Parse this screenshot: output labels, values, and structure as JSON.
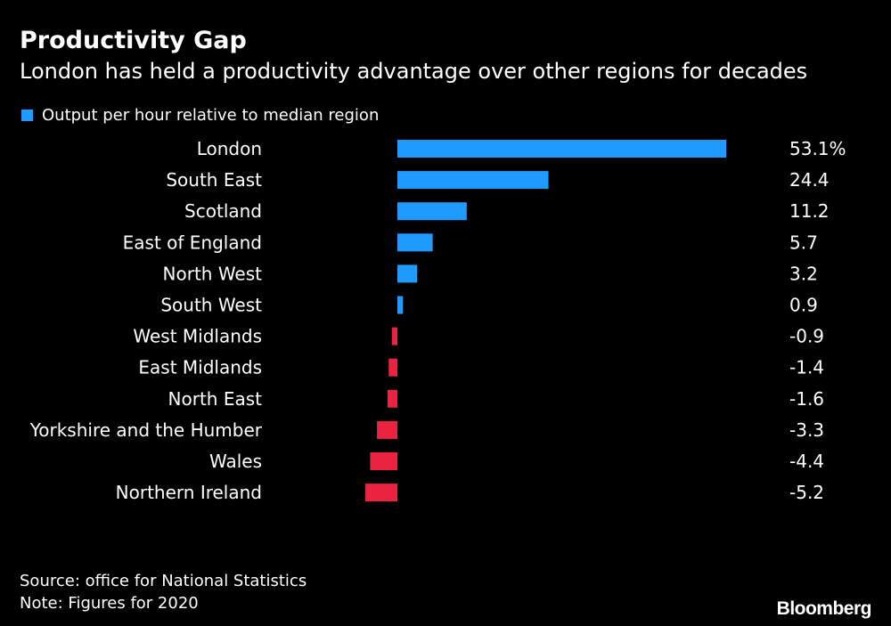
{
  "header": {
    "title": "Productivity Gap",
    "subtitle": "London has held a productivity advantage over other regions for decades"
  },
  "chart_data": {
    "type": "bar",
    "orientation": "horizontal",
    "legend": [
      {
        "name": "Output per hour relative to median region",
        "color": "#1f9bff"
      }
    ],
    "categories": [
      "London",
      "South East",
      "Scotland",
      "East of England",
      "North West",
      "South West",
      "West Midlands",
      "East Midlands",
      "North East",
      "Yorkshire and the Humber",
      "Wales",
      "Northern Ireland"
    ],
    "values": [
      53.1,
      24.4,
      11.2,
      5.7,
      3.2,
      0.9,
      -0.9,
      -1.4,
      -1.6,
      -3.3,
      -4.4,
      -5.2
    ],
    "value_labels": [
      "53.1%",
      "24.4",
      "11.2",
      "5.7",
      "3.2",
      "0.9",
      "-0.9",
      "-1.4",
      "-1.6",
      "-3.3",
      "-4.4",
      "-5.2"
    ],
    "colors": {
      "positive": "#1f9bff",
      "negative": "#ec2340"
    },
    "unit": "%",
    "xlim": [
      -5.2,
      53.1
    ],
    "grid": false
  },
  "footer": {
    "source": "Source: office for National Statistics",
    "note": "Note: Figures for 2020",
    "brand": "Bloomberg"
  }
}
